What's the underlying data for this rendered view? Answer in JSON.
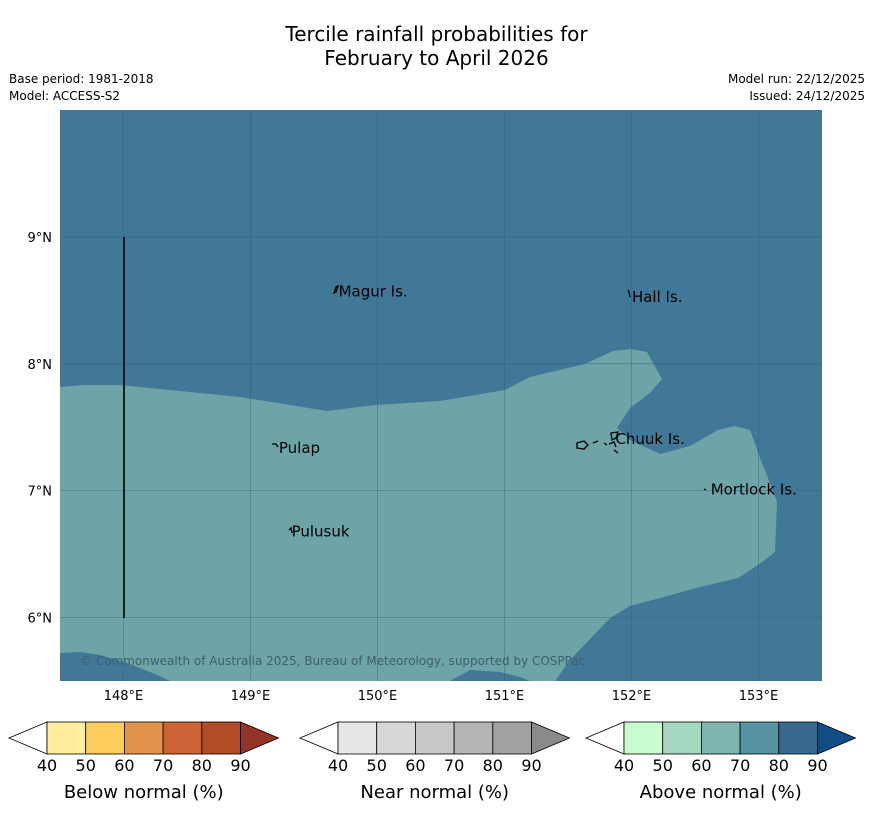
{
  "title": {
    "line1": "Tercile rainfall probabilities for",
    "line2": "February to April 2026"
  },
  "meta": {
    "base_period": "Base period: 1981-2018",
    "model": "Model: ACCESS-S2",
    "model_run": "Model run: 22/12/2025",
    "issued": "Issued: 24/12/2025"
  },
  "map": {
    "lon_range": [
      147.5,
      153.5
    ],
    "lat_range": [
      5.5,
      10.0
    ],
    "lon_ticks": [
      {
        "value": 148,
        "label": "148°E"
      },
      {
        "value": 149,
        "label": "149°E"
      },
      {
        "value": 150,
        "label": "150°E"
      },
      {
        "value": 151,
        "label": "151°E"
      },
      {
        "value": 152,
        "label": "152°E"
      },
      {
        "value": 153,
        "label": "153°E"
      }
    ],
    "lat_ticks": [
      {
        "value": 9,
        "label": "9°N"
      },
      {
        "value": 8,
        "label": "8°N"
      },
      {
        "value": 7,
        "label": "7°N"
      },
      {
        "value": 6,
        "label": "6°N"
      }
    ],
    "colors": {
      "above_80": "#417898",
      "above_70": "#6ea4a8",
      "gridline": "#2b5d73",
      "land": "#000000"
    },
    "places": [
      {
        "name": "Magur Is.",
        "lon": 149.67,
        "lat": 8.56
      },
      {
        "name": "Hall Is.",
        "lon": 151.98,
        "lat": 8.52
      },
      {
        "name": "Pulap",
        "lon": 149.2,
        "lat": 7.33
      },
      {
        "name": "Chuuk Is.",
        "lon": 151.85,
        "lat": 7.4
      },
      {
        "name": "Mortlock Is.",
        "lon": 152.6,
        "lat": 7.0
      },
      {
        "name": "Pulusuk",
        "lon": 149.3,
        "lat": 6.67
      }
    ],
    "copyright": "© Commonwealth of Australia 2025, Bureau of Meteorology, supported by COSPPac"
  },
  "colorbars": [
    {
      "name": "below",
      "label": "Below normal (%)",
      "ticks": [
        "40",
        "50",
        "60",
        "70",
        "80",
        "90"
      ],
      "colors": [
        "#ffeda0",
        "#fecc5c",
        "#e3944a",
        "#cd6334",
        "#b44b27",
        "#943424"
      ]
    },
    {
      "name": "near",
      "label": "Near normal (%)",
      "ticks": [
        "40",
        "50",
        "60",
        "70",
        "80",
        "90"
      ],
      "colors": [
        "#e6e6e6",
        "#d7d7d7",
        "#c8c8c8",
        "#b5b5b5",
        "#a1a1a1",
        "#8a8a8a"
      ]
    },
    {
      "name": "above",
      "label": "Above normal (%)",
      "ticks": [
        "40",
        "50",
        "60",
        "70",
        "80",
        "90"
      ],
      "colors": [
        "#c7fdcf",
        "#a4d8c1",
        "#7eb5b0",
        "#5893a4",
        "#376a8e",
        "#124d86"
      ]
    }
  ]
}
